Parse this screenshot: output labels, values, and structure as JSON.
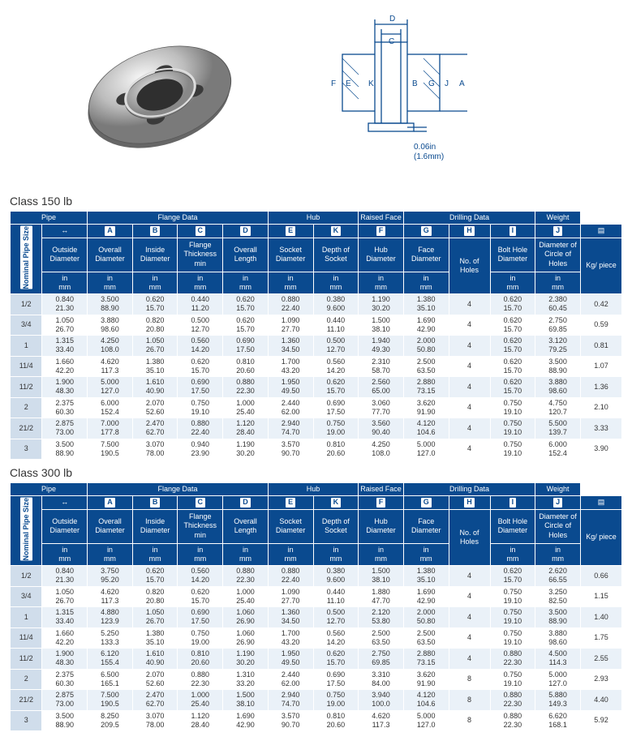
{
  "diagram_note": "0.06in\n(1.6mm)",
  "titles": {
    "c150": "Class 150 lb",
    "c300": "Class 300 lb"
  },
  "groups": [
    "Pipe",
    "Flange Data",
    "Hub",
    "Raised Face",
    "Drilling Data",
    "Weight"
  ],
  "letters": [
    "A",
    "B",
    "C",
    "D",
    "E",
    "K",
    "F",
    "G",
    "H",
    "I",
    "J"
  ],
  "labels": {
    "nps": "Nominal Pipe Size",
    "od": "Outside Diameter",
    "oa": "Overall Diameter",
    "id": "Inside Diameter",
    "ft": "Flange Thickness min",
    "ol": "Overall Length",
    "sd": "Socket Diameter",
    "ds": "Depth of Socket",
    "hd": "Hub Diameter",
    "fd": "Face Diameter",
    "nh": "No. of Holes",
    "bh": "Bolt Hole Diameter",
    "dc": "Diameter of Circle of Holes",
    "kg": "Kg/ piece",
    "unit": "in mm"
  },
  "c150": [
    {
      "sz": "1/2",
      "od": [
        "0.840",
        "21.30"
      ],
      "oa": [
        "3.500",
        "88.90"
      ],
      "id": [
        "0.620",
        "15.70"
      ],
      "ft": [
        "0.440",
        "11.20"
      ],
      "ol": [
        "0.620",
        "15.70"
      ],
      "sd": [
        "0.880",
        "22.40"
      ],
      "ds": [
        "0.380",
        "9.600"
      ],
      "hd": [
        "1.190",
        "30.20"
      ],
      "fd": [
        "1.380",
        "35.10"
      ],
      "nh": "4",
      "bh": [
        "0.620",
        "15.70"
      ],
      "dc": [
        "2.380",
        "60.45"
      ],
      "kg": "0.42"
    },
    {
      "sz": "3/4",
      "od": [
        "1.050",
        "26.70"
      ],
      "oa": [
        "3.880",
        "98.60"
      ],
      "id": [
        "0.820",
        "20.80"
      ],
      "ft": [
        "0.500",
        "12.70"
      ],
      "ol": [
        "0.620",
        "15.70"
      ],
      "sd": [
        "1.090",
        "27.70"
      ],
      "ds": [
        "0.440",
        "11.10"
      ],
      "hd": [
        "1.500",
        "38.10"
      ],
      "fd": [
        "1.690",
        "42.90"
      ],
      "nh": "4",
      "bh": [
        "0.620",
        "15.70"
      ],
      "dc": [
        "2.750",
        "69.85"
      ],
      "kg": "0.59"
    },
    {
      "sz": "1",
      "od": [
        "1.315",
        "33.40"
      ],
      "oa": [
        "4.250",
        "108.0"
      ],
      "id": [
        "1.050",
        "26.70"
      ],
      "ft": [
        "0.560",
        "14.20"
      ],
      "ol": [
        "0.690",
        "17.50"
      ],
      "sd": [
        "1.360",
        "34.50"
      ],
      "ds": [
        "0.500",
        "12.70"
      ],
      "hd": [
        "1.940",
        "49.30"
      ],
      "fd": [
        "2.000",
        "50.80"
      ],
      "nh": "4",
      "bh": [
        "0.620",
        "15.70"
      ],
      "dc": [
        "3.120",
        "79.25"
      ],
      "kg": "0.81"
    },
    {
      "sz": "11/4",
      "od": [
        "1.660",
        "42.20"
      ],
      "oa": [
        "4.620",
        "117.3"
      ],
      "id": [
        "1.380",
        "35.10"
      ],
      "ft": [
        "0.620",
        "15.70"
      ],
      "ol": [
        "0.810",
        "20.60"
      ],
      "sd": [
        "1.700",
        "43.20"
      ],
      "ds": [
        "0.560",
        "14.20"
      ],
      "hd": [
        "2.310",
        "58.70"
      ],
      "fd": [
        "2.500",
        "63.50"
      ],
      "nh": "4",
      "bh": [
        "0.620",
        "15.70"
      ],
      "dc": [
        "3.500",
        "88.90"
      ],
      "kg": "1.07"
    },
    {
      "sz": "11/2",
      "od": [
        "1.900",
        "48.30"
      ],
      "oa": [
        "5.000",
        "127.0"
      ],
      "id": [
        "1.610",
        "40.90"
      ],
      "ft": [
        "0.690",
        "17.50"
      ],
      "ol": [
        "0.880",
        "22.30"
      ],
      "sd": [
        "1.950",
        "49.50"
      ],
      "ds": [
        "0.620",
        "15.70"
      ],
      "hd": [
        "2.560",
        "65.00"
      ],
      "fd": [
        "2.880",
        "73.15"
      ],
      "nh": "4",
      "bh": [
        "0.620",
        "15.70"
      ],
      "dc": [
        "3.880",
        "98.60"
      ],
      "kg": "1.36"
    },
    {
      "sz": "2",
      "od": [
        "2.375",
        "60.30"
      ],
      "oa": [
        "6.000",
        "152.4"
      ],
      "id": [
        "2.070",
        "52.60"
      ],
      "ft": [
        "0.750",
        "19.10"
      ],
      "ol": [
        "1.000",
        "25.40"
      ],
      "sd": [
        "2.440",
        "62.00"
      ],
      "ds": [
        "0.690",
        "17.50"
      ],
      "hd": [
        "3.060",
        "77.70"
      ],
      "fd": [
        "3.620",
        "91.90"
      ],
      "nh": "4",
      "bh": [
        "0.750",
        "19.10"
      ],
      "dc": [
        "4.750",
        "120.7"
      ],
      "kg": "2.10"
    },
    {
      "sz": "21/2",
      "od": [
        "2.875",
        "73.00"
      ],
      "oa": [
        "7.000",
        "177.8"
      ],
      "id": [
        "2.470",
        "62.70"
      ],
      "ft": [
        "0.880",
        "22.40"
      ],
      "ol": [
        "1.120",
        "28.40"
      ],
      "sd": [
        "2.940",
        "74.70"
      ],
      "ds": [
        "0.750",
        "19.00"
      ],
      "hd": [
        "3.560",
        "90.40"
      ],
      "fd": [
        "4.120",
        "104.6"
      ],
      "nh": "4",
      "bh": [
        "0.750",
        "19.10"
      ],
      "dc": [
        "5.500",
        "139.7"
      ],
      "kg": "3.33"
    },
    {
      "sz": "3",
      "od": [
        "3.500",
        "88.90"
      ],
      "oa": [
        "7.500",
        "190.5"
      ],
      "id": [
        "3.070",
        "78.00"
      ],
      "ft": [
        "0.940",
        "23.90"
      ],
      "ol": [
        "1.190",
        "30.20"
      ],
      "sd": [
        "3.570",
        "90.70"
      ],
      "ds": [
        "0.810",
        "20.60"
      ],
      "hd": [
        "4.250",
        "108.0"
      ],
      "fd": [
        "5.000",
        "127.0"
      ],
      "nh": "4",
      "bh": [
        "0.750",
        "19.10"
      ],
      "dc": [
        "6.000",
        "152.4"
      ],
      "kg": "3.90"
    }
  ],
  "c300": [
    {
      "sz": "1/2",
      "od": [
        "0.840",
        "21.30"
      ],
      "oa": [
        "3.750",
        "95.20"
      ],
      "id": [
        "0.620",
        "15.70"
      ],
      "ft": [
        "0.560",
        "14.20"
      ],
      "ol": [
        "0.880",
        "22.30"
      ],
      "sd": [
        "0.880",
        "22.40"
      ],
      "ds": [
        "0.380",
        "9.600"
      ],
      "hd": [
        "1.500",
        "38.10"
      ],
      "fd": [
        "1.380",
        "35.10"
      ],
      "nh": "4",
      "bh": [
        "0.620",
        "15.70"
      ],
      "dc": [
        "2.620",
        "66.55"
      ],
      "kg": "0.66"
    },
    {
      "sz": "3/4",
      "od": [
        "1.050",
        "26.70"
      ],
      "oa": [
        "4.620",
        "117.3"
      ],
      "id": [
        "0.820",
        "20.80"
      ],
      "ft": [
        "0.620",
        "15.70"
      ],
      "ol": [
        "1.000",
        "25.40"
      ],
      "sd": [
        "1.090",
        "27.70"
      ],
      "ds": [
        "0.440",
        "11.10"
      ],
      "hd": [
        "1.880",
        "47.70"
      ],
      "fd": [
        "1.690",
        "42.90"
      ],
      "nh": "4",
      "bh": [
        "0.750",
        "19.10"
      ],
      "dc": [
        "3.250",
        "82.50"
      ],
      "kg": "1.15"
    },
    {
      "sz": "1",
      "od": [
        "1.315",
        "33.40"
      ],
      "oa": [
        "4.880",
        "123.9"
      ],
      "id": [
        "1.050",
        "26.70"
      ],
      "ft": [
        "0.690",
        "17.50"
      ],
      "ol": [
        "1.060",
        "26.90"
      ],
      "sd": [
        "1.360",
        "34.50"
      ],
      "ds": [
        "0.500",
        "12.70"
      ],
      "hd": [
        "2.120",
        "53.80"
      ],
      "fd": [
        "2.000",
        "50.80"
      ],
      "nh": "4",
      "bh": [
        "0.750",
        "19.10"
      ],
      "dc": [
        "3.500",
        "88.90"
      ],
      "kg": "1.40"
    },
    {
      "sz": "11/4",
      "od": [
        "1.660",
        "42.20"
      ],
      "oa": [
        "5.250",
        "133.3"
      ],
      "id": [
        "1.380",
        "35.10"
      ],
      "ft": [
        "0.750",
        "19.00"
      ],
      "ol": [
        "1.060",
        "26.90"
      ],
      "sd": [
        "1.700",
        "43.20"
      ],
      "ds": [
        "0.560",
        "14.20"
      ],
      "hd": [
        "2.500",
        "63.50"
      ],
      "fd": [
        "2.500",
        "63.50"
      ],
      "nh": "4",
      "bh": [
        "0.750",
        "19.10"
      ],
      "dc": [
        "3.880",
        "98.60"
      ],
      "kg": "1.75"
    },
    {
      "sz": "11/2",
      "od": [
        "1.900",
        "48.30"
      ],
      "oa": [
        "6.120",
        "155.4"
      ],
      "id": [
        "1.610",
        "40.90"
      ],
      "ft": [
        "0.810",
        "20.60"
      ],
      "ol": [
        "1.190",
        "30.20"
      ],
      "sd": [
        "1.950",
        "49.50"
      ],
      "ds": [
        "0.620",
        "15.70"
      ],
      "hd": [
        "2.750",
        "69.85"
      ],
      "fd": [
        "2.880",
        "73.15"
      ],
      "nh": "4",
      "bh": [
        "0.880",
        "22.30"
      ],
      "dc": [
        "4.500",
        "114.3"
      ],
      "kg": "2.55"
    },
    {
      "sz": "2",
      "od": [
        "2.375",
        "60.30"
      ],
      "oa": [
        "6.500",
        "165.1"
      ],
      "id": [
        "2.070",
        "52.60"
      ],
      "ft": [
        "0.880",
        "22.30"
      ],
      "ol": [
        "1.310",
        "33.20"
      ],
      "sd": [
        "2.440",
        "62.00"
      ],
      "ds": [
        "0.690",
        "17.50"
      ],
      "hd": [
        "3.310",
        "84.00"
      ],
      "fd": [
        "3.620",
        "91.90"
      ],
      "nh": "8",
      "bh": [
        "0.750",
        "19.10"
      ],
      "dc": [
        "5.000",
        "127.0"
      ],
      "kg": "2.93"
    },
    {
      "sz": "21/2",
      "od": [
        "2.875",
        "73.00"
      ],
      "oa": [
        "7.500",
        "190.5"
      ],
      "id": [
        "2.470",
        "62.70"
      ],
      "ft": [
        "1.000",
        "25.40"
      ],
      "ol": [
        "1.500",
        "38.10"
      ],
      "sd": [
        "2.940",
        "74.70"
      ],
      "ds": [
        "0.750",
        "19.00"
      ],
      "hd": [
        "3.940",
        "100.0"
      ],
      "fd": [
        "4.120",
        "104.6"
      ],
      "nh": "8",
      "bh": [
        "0.880",
        "22.30"
      ],
      "dc": [
        "5.880",
        "149.3"
      ],
      "kg": "4.40"
    },
    {
      "sz": "3",
      "od": [
        "3.500",
        "88.90"
      ],
      "oa": [
        "8.250",
        "209.5"
      ],
      "id": [
        "3.070",
        "78.00"
      ],
      "ft": [
        "1.120",
        "28.40"
      ],
      "ol": [
        "1.690",
        "42.90"
      ],
      "sd": [
        "3.570",
        "90.70"
      ],
      "ds": [
        "0.810",
        "20.60"
      ],
      "hd": [
        "4.620",
        "117.3"
      ],
      "fd": [
        "5.000",
        "127.0"
      ],
      "nh": "8",
      "bh": [
        "0.880",
        "22.30"
      ],
      "dc": [
        "6.620",
        "168.1"
      ],
      "kg": "5.92"
    }
  ]
}
